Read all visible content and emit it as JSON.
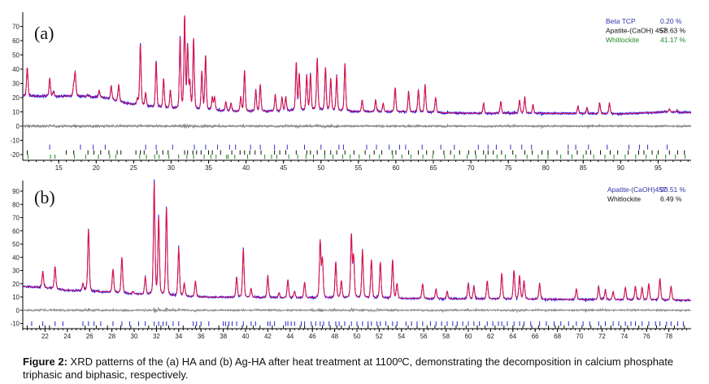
{
  "caption": {
    "label": "Figure 2:",
    "text": " XRD patterns of the (a) HA and (b) Ag-HA after heat treatment at 1100ºC, demonstrating the decomposition in calcium phosphate triphasic and biphasic, respectively."
  },
  "colors": {
    "observed": "#1a1aff",
    "calculated": "#e8103a",
    "difference": "#8a8a8a",
    "blue_phase": "#3333cc",
    "black_phase": "#111111",
    "green_phase": "#1f8a1f"
  },
  "chart_data": [
    {
      "type": "line",
      "panel_label": "(a)",
      "xlabel": "",
      "ylabel": "",
      "xlim": [
        10.2,
        99.4
      ],
      "ylim": [
        -24,
        80
      ],
      "xticks": [
        15,
        20,
        25,
        30,
        35,
        40,
        45,
        50,
        55,
        60,
        65,
        70,
        75,
        80,
        85,
        90,
        95
      ],
      "yticks": [
        -20,
        -10,
        0,
        10,
        20,
        30,
        40,
        50,
        60,
        70
      ],
      "legend": [
        {
          "name": "Beta TCP",
          "value": "0.20 %",
          "color": "#3333aa"
        },
        {
          "name": "Apatite-(CaOH) 457",
          "value": "58.63 %",
          "color": "#111111"
        },
        {
          "name": "Whitlockite",
          "value": "41.17 %",
          "color": "#1f8a1f"
        }
      ],
      "background": [
        [
          10,
          21
        ],
        [
          13,
          21
        ],
        [
          18,
          21
        ],
        [
          21,
          20
        ],
        [
          24,
          16
        ],
        [
          26,
          14
        ],
        [
          30,
          12
        ],
        [
          35,
          11
        ],
        [
          40,
          10
        ],
        [
          50,
          11
        ],
        [
          55,
          10
        ],
        [
          60,
          10
        ],
        [
          70,
          9
        ],
        [
          80,
          9
        ],
        [
          90,
          8.5
        ],
        [
          96,
          10
        ],
        [
          99.5,
          9.5
        ]
      ],
      "peaks": [
        [
          10.8,
          41
        ],
        [
          13.8,
          33
        ],
        [
          14.3,
          24
        ],
        [
          17.0,
          28
        ],
        [
          17.2,
          37
        ],
        [
          18.9,
          22
        ],
        [
          20.4,
          25
        ],
        [
          22.0,
          28
        ],
        [
          23.0,
          29
        ],
        [
          25.5,
          19
        ],
        [
          25.9,
          57
        ],
        [
          26.6,
          23
        ],
        [
          28.0,
          45
        ],
        [
          29.0,
          33
        ],
        [
          29.9,
          25
        ],
        [
          31.2,
          61
        ],
        [
          31.8,
          76
        ],
        [
          32.2,
          55
        ],
        [
          32.5,
          29
        ],
        [
          33.0,
          61
        ],
        [
          34.1,
          38
        ],
        [
          34.6,
          49
        ],
        [
          35.5,
          20
        ],
        [
          35.8,
          20
        ],
        [
          37.3,
          17
        ],
        [
          38.0,
          16
        ],
        [
          39.3,
          20
        ],
        [
          39.8,
          39
        ],
        [
          41.3,
          25
        ],
        [
          41.9,
          29
        ],
        [
          43.9,
          22
        ],
        [
          44.8,
          20
        ],
        [
          45.3,
          20
        ],
        [
          46.7,
          44
        ],
        [
          47.1,
          36
        ],
        [
          48.1,
          35
        ],
        [
          48.6,
          36
        ],
        [
          49.5,
          47
        ],
        [
          50.6,
          41
        ],
        [
          51.3,
          33
        ],
        [
          52.1,
          35
        ],
        [
          53.2,
          44
        ],
        [
          55.5,
          18
        ],
        [
          57.3,
          18
        ],
        [
          58.3,
          16
        ],
        [
          59.9,
          27
        ],
        [
          61.7,
          24
        ],
        [
          63.0,
          25
        ],
        [
          63.9,
          29
        ],
        [
          65.3,
          20
        ],
        [
          71.7,
          16
        ],
        [
          74.0,
          17
        ],
        [
          76.5,
          18
        ],
        [
          77.2,
          20
        ],
        [
          78.3,
          15
        ],
        [
          84.3,
          14
        ],
        [
          85.5,
          13
        ],
        [
          87.2,
          16
        ],
        [
          88.5,
          16
        ],
        [
          96.5,
          12
        ],
        [
          97.5,
          11
        ]
      ],
      "peak_width": 0.14,
      "phase_ticks": [
        {
          "phase": "Beta TCP",
          "color": "#3333cc",
          "range": [
            -16.5,
            -13
          ],
          "positions": [
            13.8,
            17.9,
            19.6,
            21.2,
            26.6,
            28.0,
            30.2,
            33.1,
            34.6,
            36.2,
            37.8,
            38.6,
            40.6,
            41.9,
            43.8,
            45.5,
            47.8,
            50.0,
            52.4,
            53.0,
            56.1,
            57.4,
            59.1,
            60.5,
            61.3,
            63.5,
            66.0,
            67.8,
            71.0,
            72.3,
            73.4,
            75.3,
            76.8,
            78.1,
            83.0,
            84.0,
            85.7,
            88.2,
            91.1,
            92.5,
            93.6,
            96.2
          ]
        },
        {
          "phase": "Apatite-(CaOH) 457",
          "color": "#111111",
          "range": [
            -20,
            -17
          ],
          "positions": [
            10.8,
            16.0,
            17.0,
            18.9,
            19.7,
            20.6,
            21.7,
            22.8,
            23.3,
            25.3,
            25.9,
            26.4,
            28.1,
            28.9,
            29.6,
            31.8,
            32.2,
            32.9,
            33.4,
            34.0,
            35.0,
            35.5,
            36.6,
            38.1,
            39.2,
            39.8,
            40.5,
            41.2,
            42.0,
            43.8,
            44.5,
            45.3,
            46.7,
            48.1,
            48.6,
            49.5,
            50.5,
            51.3,
            52.1,
            53.2,
            54.4,
            55.9,
            57.1,
            58.1,
            59.5,
            60.0,
            61.7,
            63.0,
            64.1,
            65.0,
            66.4,
            67.3,
            68.5,
            69.7,
            70.6,
            71.7,
            72.3,
            73.0,
            74.1,
            75.6,
            77.2,
            78.2,
            79.5,
            80.3,
            81.5,
            83.0,
            84.2,
            85.4,
            86.0,
            87.3,
            88.6,
            89.6,
            91.0,
            92.4,
            93.1,
            94.2,
            95.0,
            96.5,
            97.6,
            98.5
          ]
        },
        {
          "phase": "Whitlockite",
          "color": "#1f8a1f",
          "range": [
            -23,
            -20
          ],
          "positions": [
            10.9,
            13.9,
            14.5,
            17.1,
            18.6,
            20.3,
            21.8,
            22.6,
            25.8,
            26.7,
            27.8,
            28.4,
            29.7,
            31.0,
            32.1,
            33.0,
            34.4,
            35.3,
            36.0,
            37.4,
            37.6,
            38.5,
            40.2,
            42.5,
            43.4,
            44.1,
            45.7,
            46.9,
            48.0,
            49.0,
            50.5,
            51.6,
            52.9,
            53.9,
            55.1,
            56.5,
            57.8,
            59.6,
            60.8,
            62.0,
            63.6,
            64.9,
            66.5,
            67.8,
            69.5,
            70.7,
            72.0,
            73.5,
            74.6,
            76.0,
            77.5,
            79.0,
            80.3,
            82.0,
            83.5,
            85.0,
            86.4,
            87.9,
            89.1,
            90.6,
            92.0,
            93.4,
            94.8,
            96.0,
            97.3,
            98.6
          ]
        }
      ]
    },
    {
      "type": "line",
      "panel_label": "(b)",
      "xlabel": "",
      "ylabel": "",
      "xlim": [
        20.0,
        80.0
      ],
      "ylim": [
        -14,
        98
      ],
      "xticks": [
        22,
        24,
        26,
        28,
        30,
        32,
        34,
        36,
        38,
        40,
        42,
        44,
        46,
        48,
        50,
        52,
        54,
        56,
        58,
        60,
        62,
        64,
        66,
        68,
        70,
        72,
        74,
        76,
        78
      ],
      "yticks": [
        -10,
        0,
        10,
        20,
        30,
        40,
        50,
        60,
        70,
        80,
        90
      ],
      "legend": [
        {
          "name": "Apatite-(CaOH)457",
          "value": "93.51 %",
          "color": "#3333aa"
        },
        {
          "name": "Whitlockite",
          "value": "6.49 %",
          "color": "#111111"
        }
      ],
      "background": [
        [
          20,
          18
        ],
        [
          22,
          17
        ],
        [
          24,
          15
        ],
        [
          28,
          13.5
        ],
        [
          32,
          11
        ],
        [
          36,
          10
        ],
        [
          40,
          9.5
        ],
        [
          50,
          9
        ],
        [
          60,
          8.5
        ],
        [
          70,
          8
        ],
        [
          80,
          7.5
        ]
      ],
      "peaks": [
        [
          21.8,
          29
        ],
        [
          22.9,
          33
        ],
        [
          25.4,
          20
        ],
        [
          25.9,
          61
        ],
        [
          28.1,
          31
        ],
        [
          28.9,
          40
        ],
        [
          29.9,
          14
        ],
        [
          31.0,
          25
        ],
        [
          31.8,
          96
        ],
        [
          32.2,
          69
        ],
        [
          32.9,
          77
        ],
        [
          34.0,
          47
        ],
        [
          34.5,
          20
        ],
        [
          35.5,
          22
        ],
        [
          39.2,
          25
        ],
        [
          39.8,
          46
        ],
        [
          40.5,
          16
        ],
        [
          42.0,
          26
        ],
        [
          43.0,
          13
        ],
        [
          43.8,
          23
        ],
        [
          44.4,
          14
        ],
        [
          45.3,
          21
        ],
        [
          46.7,
          52
        ],
        [
          46.9,
          38
        ],
        [
          48.1,
          36
        ],
        [
          48.6,
          22
        ],
        [
          49.5,
          56
        ],
        [
          49.7,
          40
        ],
        [
          50.5,
          45
        ],
        [
          51.3,
          38
        ],
        [
          52.1,
          36
        ],
        [
          53.2,
          38
        ],
        [
          53.6,
          20
        ],
        [
          55.9,
          20
        ],
        [
          57.1,
          16
        ],
        [
          58.1,
          14
        ],
        [
          60.0,
          20
        ],
        [
          60.5,
          18
        ],
        [
          61.7,
          22
        ],
        [
          63.0,
          28
        ],
        [
          64.1,
          30
        ],
        [
          64.6,
          26
        ],
        [
          65.0,
          22
        ],
        [
          66.4,
          20
        ],
        [
          69.7,
          16
        ],
        [
          71.7,
          18
        ],
        [
          72.3,
          15
        ],
        [
          73.0,
          14
        ],
        [
          74.1,
          17
        ],
        [
          75.0,
          18
        ],
        [
          75.6,
          17
        ],
        [
          76.2,
          20
        ],
        [
          77.2,
          24
        ],
        [
          78.2,
          18
        ]
      ],
      "peak_width": 0.1,
      "phase_ticks": [
        {
          "phase": "Apatite-(CaOH)457",
          "color": "#2222cc",
          "range": [
            -12,
            -8.5
          ],
          "positions": [
            20.8,
            21.8,
            22.9,
            23.6,
            25.4,
            25.9,
            26.4,
            27.0,
            28.1,
            28.9,
            29.6,
            30.4,
            31.0,
            31.8,
            32.2,
            32.6,
            32.9,
            33.5,
            34.0,
            35.3,
            35.6,
            36.0,
            36.7,
            38.0,
            38.2,
            38.5,
            38.8,
            39.2,
            39.8,
            40.5,
            40.9,
            42.0,
            42.2,
            42.6,
            43.6,
            43.8,
            44.1,
            44.4,
            45.0,
            45.3,
            45.9,
            46.3,
            46.7,
            47.0,
            47.5,
            48.1,
            48.4,
            48.9,
            49.5,
            50.0,
            50.5,
            51.0,
            51.3,
            51.8,
            52.1,
            52.6,
            53.2,
            53.6,
            54.4,
            54.9,
            55.4,
            55.9,
            56.6,
            57.1,
            57.6,
            58.1,
            58.6,
            59.0,
            59.5,
            60.0,
            60.5,
            61.0,
            61.7,
            62.2,
            62.7,
            63.0,
            63.5,
            64.1,
            64.6,
            65.0,
            65.6,
            66.4,
            67.0,
            67.7,
            68.3,
            69.0,
            69.7,
            70.3,
            70.9,
            71.7,
            72.3,
            73.0,
            73.5,
            74.1,
            74.6,
            75.0,
            75.6,
            76.2,
            76.8,
            77.2,
            77.8,
            78.2,
            78.8,
            79.3
          ]
        },
        {
          "phase": "Whitlockite",
          "color": "#111111",
          "range": [
            -14,
            -11.5
          ],
          "positions": [
            20.4,
            21.5,
            22.0,
            22.4,
            25.6,
            26.6,
            27.6,
            28.8,
            29.7,
            31.3,
            32.0,
            32.4,
            33.1,
            34.4,
            35.5,
            35.9,
            37.6,
            38.4,
            39.7,
            40.1,
            40.7,
            41.3,
            42.4,
            43.4,
            44.9,
            45.3,
            46.0,
            46.9,
            47.6,
            48.2,
            48.6,
            49.3,
            50.1,
            51.0,
            51.9,
            52.8,
            53.5,
            54.6,
            55.4,
            56.3,
            57.0,
            57.9,
            58.9,
            59.8,
            60.8,
            61.5,
            62.4,
            63.2,
            64.0,
            64.9,
            65.7,
            66.3,
            67.2,
            67.8,
            68.1,
            68.6,
            69.4,
            70.2,
            71.0,
            71.9,
            72.8,
            73.7,
            74.3,
            75.3,
            76.1,
            76.9,
            77.7,
            78.5,
            79.4
          ]
        }
      ]
    }
  ]
}
